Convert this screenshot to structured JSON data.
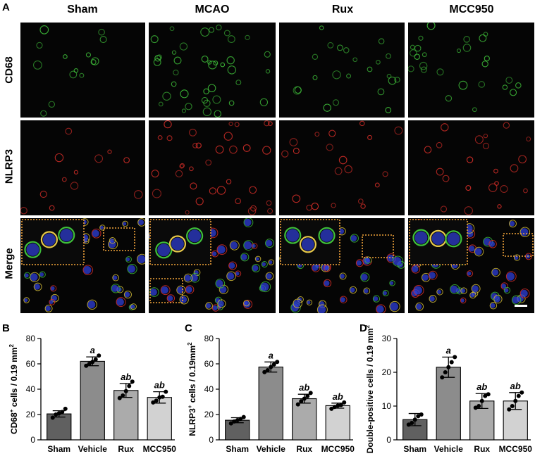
{
  "figure": {
    "panel_labels": [
      "A",
      "B",
      "C",
      "D"
    ],
    "columns": [
      "Sham",
      "MCAO",
      "Rux",
      "MCC950"
    ],
    "rows": [
      "CD68",
      "NLRP3",
      "Merge"
    ],
    "colors": {
      "cd68": "#3fbf3a",
      "nlrp3": "#e0302a",
      "dapi": "#2f3fd8",
      "inset_border": "#f2a33a",
      "scale_bar": "#ffffff"
    }
  },
  "chart_data": [
    {
      "type": "bar",
      "categories": [
        "Sham",
        "Vehicle",
        "Rux",
        "MCC950"
      ],
      "values": [
        20.5,
        62,
        39,
        33.5
      ],
      "errors": [
        2.5,
        3.5,
        5.5,
        4.5
      ],
      "points": [
        [
          17.5,
          20,
          21,
          22,
          24.5
        ],
        [
          58.5,
          60,
          61.5,
          63.5,
          66.5
        ],
        [
          33,
          35,
          38.5,
          42.5,
          46
        ],
        [
          29.5,
          31,
          33.5,
          34,
          38
        ]
      ],
      "annotations": [
        "",
        "a",
        "ab",
        "ab"
      ],
      "ylabel_main": "CD68",
      "ylabel_sup": "+",
      "ylabel_rest": " cells / 0.19 mm",
      "ylabel_unit_sup": "2",
      "ylim": [
        0,
        80
      ],
      "yticks": [
        "0",
        "20",
        "40",
        "60",
        "80"
      ],
      "bar_colors": [
        "#606060",
        "#8c8c8c",
        "#ababab",
        "#d2d2d2"
      ]
    },
    {
      "type": "bar",
      "categories": [
        "Sham",
        "Vehicle",
        "Rux",
        "MCC950"
      ],
      "values": [
        15.5,
        57.5,
        32.5,
        27
      ],
      "errors": [
        2,
        4,
        3.5,
        2
      ],
      "points": [
        [
          13,
          14.5,
          15.5,
          16.5,
          18
        ],
        [
          53.5,
          55,
          57.5,
          59.5,
          61.5
        ],
        [
          28,
          30.5,
          32.5,
          34.5,
          37
        ],
        [
          24.5,
          26,
          27,
          27.5,
          29.5
        ]
      ],
      "annotations": [
        "",
        "a",
        "ab",
        "ab"
      ],
      "ylabel_main": "NLRP3",
      "ylabel_sup": "+",
      "ylabel_rest": " cells / 0.19mm",
      "ylabel_unit_sup": "2",
      "ylim": [
        0,
        80
      ],
      "yticks": [
        "0",
        "20",
        "40",
        "60",
        "80"
      ],
      "bar_colors": [
        "#606060",
        "#8c8c8c",
        "#ababab",
        "#d2d2d2"
      ]
    },
    {
      "type": "bar",
      "categories": [
        "Sham",
        "Vehicle",
        "Rux",
        "MCC950"
      ],
      "values": [
        6,
        21.5,
        11.5,
        11.5
      ],
      "errors": [
        1.8,
        3,
        2.2,
        2.5
      ],
      "points": [
        [
          4.5,
          5,
          6,
          7,
          7.5
        ],
        [
          18.5,
          20,
          21.5,
          23,
          24.5
        ],
        [
          9.5,
          10,
          11.5,
          13,
          13.5
        ],
        [
          9,
          10,
          11.5,
          13,
          14
        ]
      ],
      "annotations": [
        "",
        "a",
        "ab",
        "ab"
      ],
      "ylabel_main": "Double-positive cells / 0.19 mm",
      "ylabel_sup": "",
      "ylabel_rest": "",
      "ylabel_unit_sup": "2",
      "ylim": [
        0,
        30
      ],
      "yticks": [
        "0",
        "10",
        "20",
        "30"
      ],
      "bar_colors": [
        "#606060",
        "#8c8c8c",
        "#ababab",
        "#d2d2d2"
      ]
    }
  ]
}
